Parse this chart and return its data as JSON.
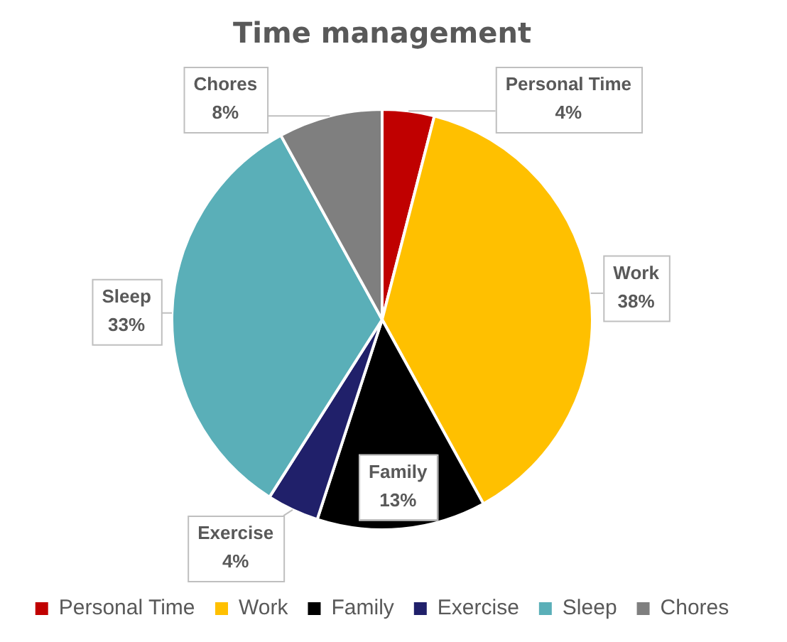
{
  "chart_data": {
    "type": "pie",
    "title": "Time management",
    "categories": [
      "Personal Time",
      "Work",
      "Family",
      "Exercise",
      "Sleep",
      "Chores"
    ],
    "values": [
      4,
      38,
      13,
      4,
      33,
      8
    ],
    "colors": [
      "#c00000",
      "#ffc000",
      "#000000",
      "#20206a",
      "#5aafb8",
      "#7f7f7f"
    ],
    "value_labels": [
      "4%",
      "38%",
      "13%",
      "4%",
      "33%",
      "8%"
    ],
    "legend": "bottom"
  }
}
